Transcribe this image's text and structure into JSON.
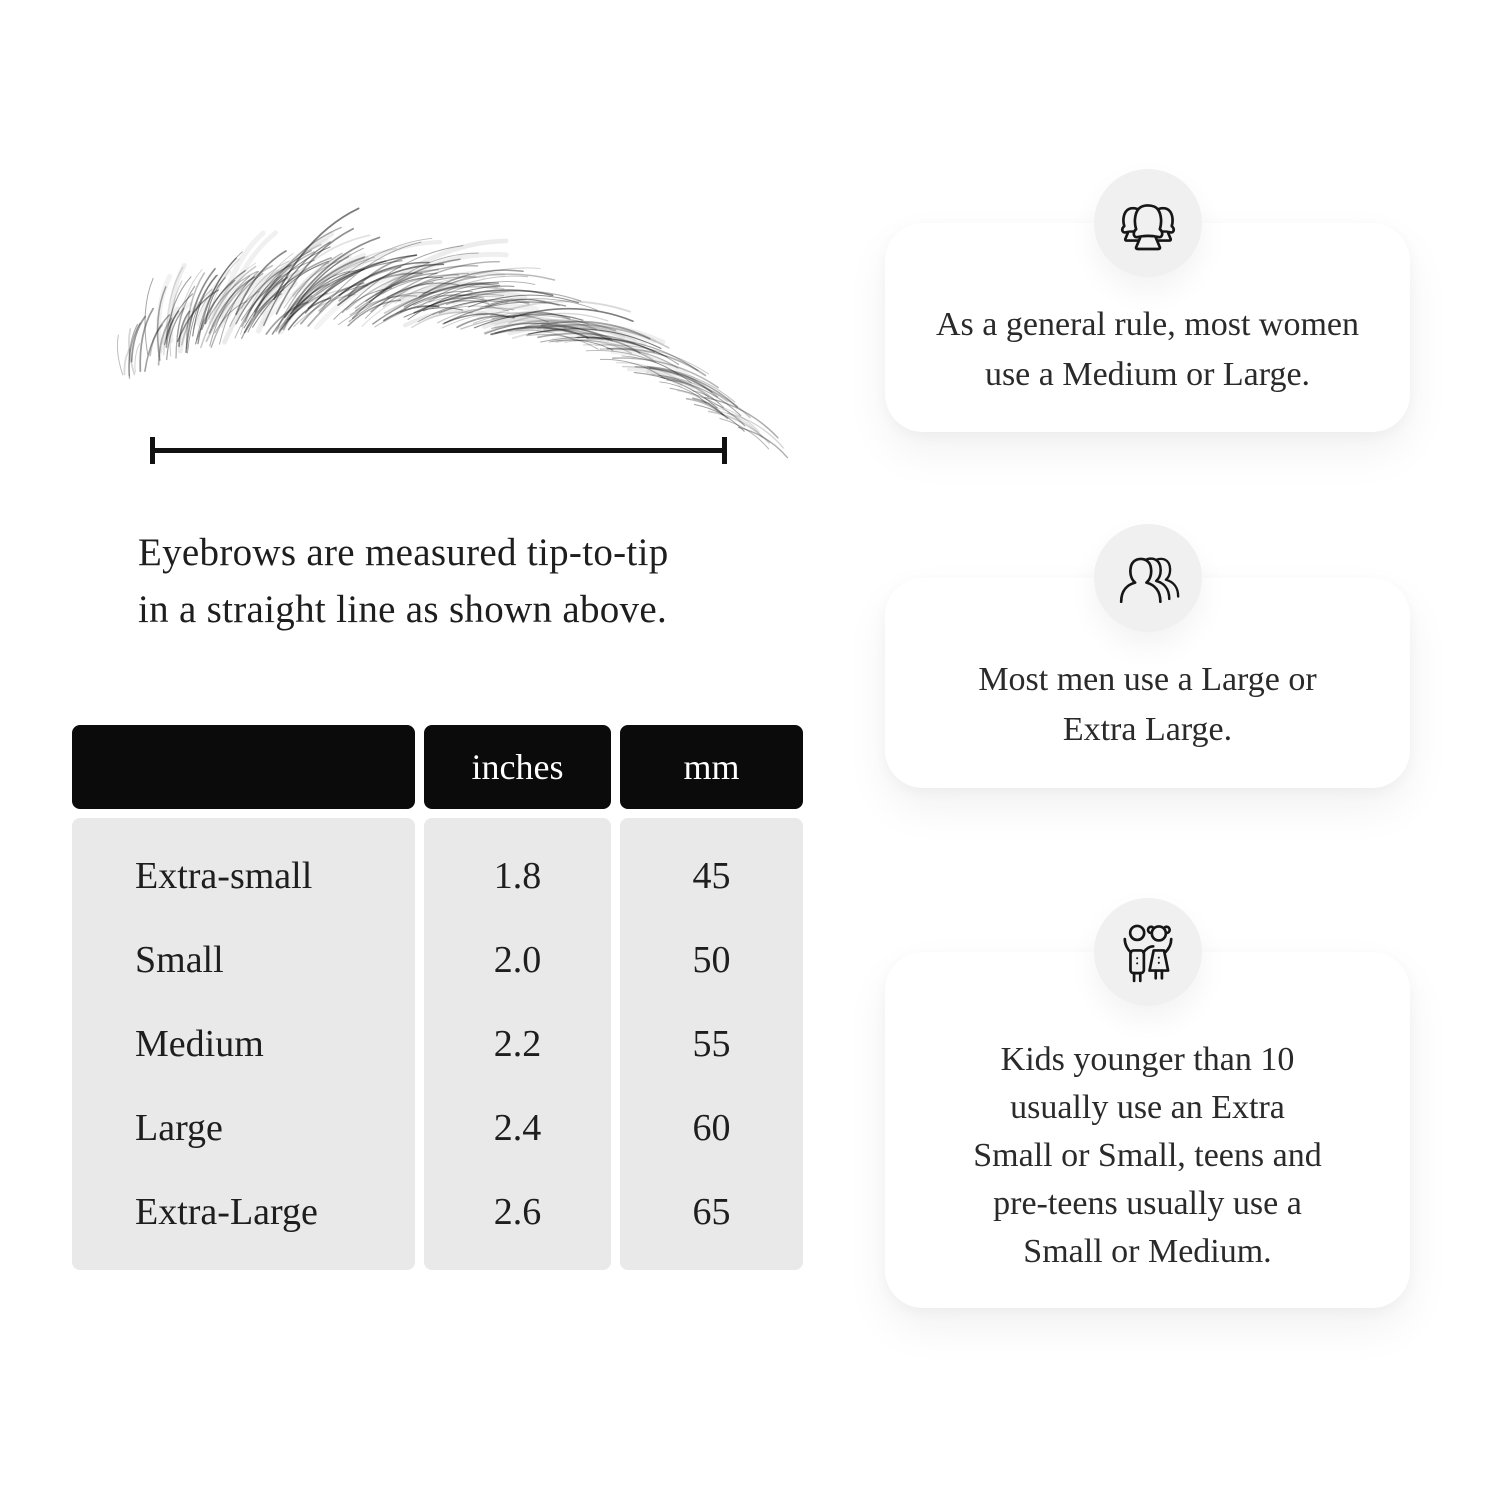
{
  "measure": {
    "caption_lines": [
      "Eyebrows are measured tip-to-tip",
      "in a straight line as shown above."
    ]
  },
  "table": {
    "headers": {
      "size": "",
      "inches": "inches",
      "mm": "mm"
    },
    "rows": [
      {
        "label": "Extra-small",
        "inches": "1.8",
        "mm": "45"
      },
      {
        "label": "Small",
        "inches": "2.0",
        "mm": "50"
      },
      {
        "label": "Medium",
        "inches": "2.2",
        "mm": "55"
      },
      {
        "label": "Large",
        "inches": "2.4",
        "mm": "60"
      },
      {
        "label": "Extra-Large",
        "inches": "2.6",
        "mm": "65"
      }
    ]
  },
  "cards": [
    {
      "icon": "women-group-icon",
      "lines": [
        "As a general rule, most women",
        "use a Medium or Large."
      ]
    },
    {
      "icon": "men-group-icon",
      "lines": [
        "Most men use a Large or",
        "Extra Large."
      ]
    },
    {
      "icon": "kids-icon",
      "lines": [
        "Kids younger than 10",
        "usually use an Extra",
        "Small or Small, teens and",
        "pre-teens usually use a",
        "Small or Medium."
      ]
    }
  ],
  "colors": {
    "header_bg": "#0b0b0b",
    "header_text": "#ffffff",
    "cell_bg": "#e9e9e9",
    "card_bg": "#ffffff",
    "icon_circle_bg": "#f0f0f0",
    "text": "#1e1e1e",
    "line": "#111111"
  }
}
